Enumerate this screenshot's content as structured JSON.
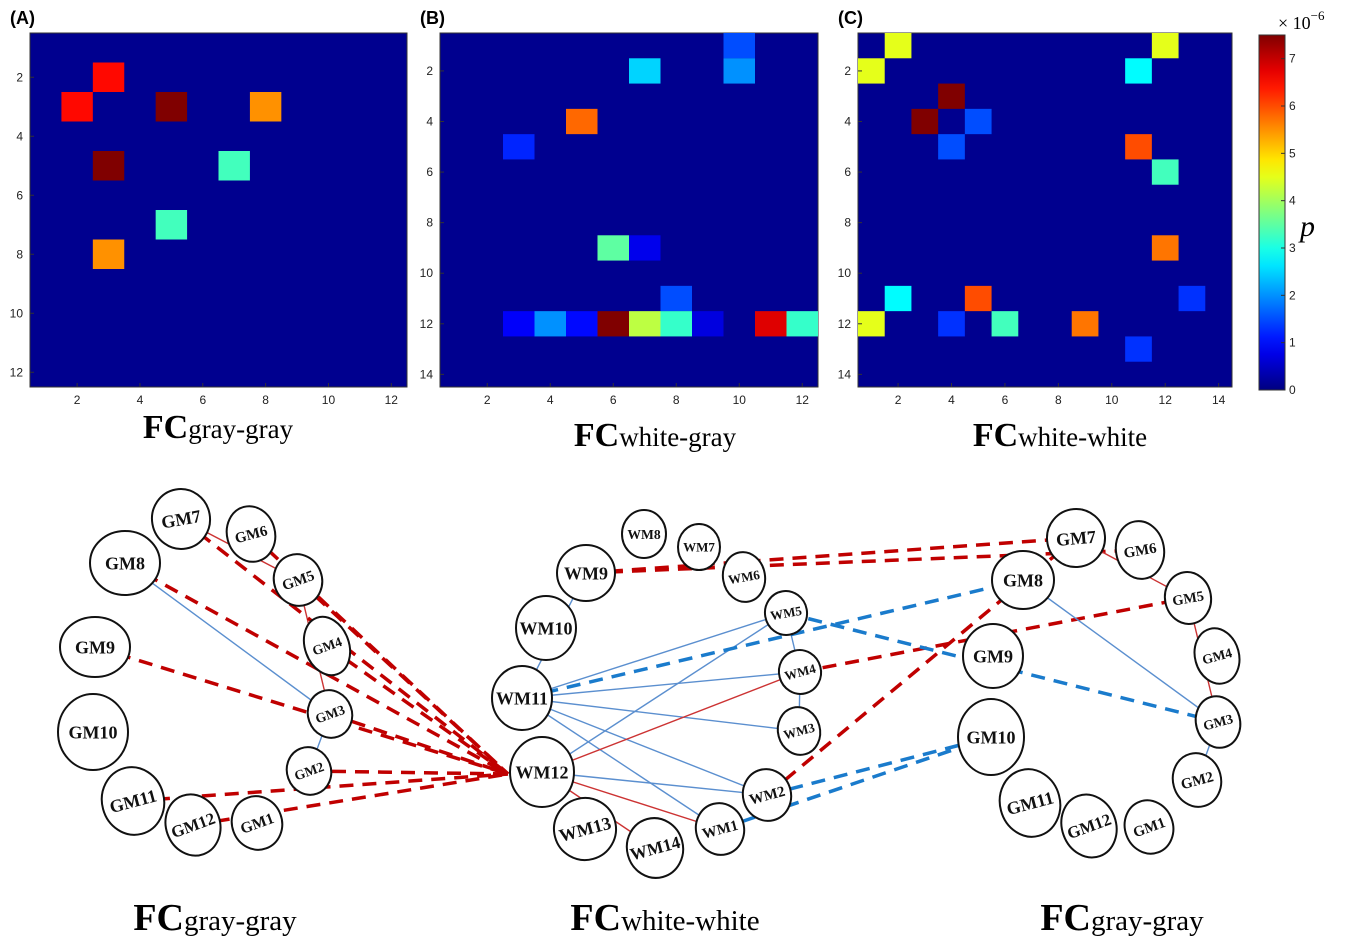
{
  "heatmaps": {
    "panels": [
      {
        "letter": "(A)",
        "caption_fc": "FC",
        "caption_sub": "gray-gray"
      },
      {
        "letter": "(B)",
        "caption_fc": "FC",
        "caption_sub": "white-gray"
      },
      {
        "letter": "(C)",
        "caption_fc": "FC",
        "caption_sub": "white-white"
      }
    ],
    "colorbar": {
      "exponent_label": "× 10",
      "exponent_power": "−6",
      "label": "p",
      "ticks": [
        "0",
        "1",
        "2",
        "3",
        "4",
        "5",
        "6",
        "7"
      ]
    }
  },
  "networks": {
    "captions": [
      {
        "fc": "FC",
        "sub": "gray-gray"
      },
      {
        "fc": "FC",
        "sub": "white-white"
      },
      {
        "fc": "FC",
        "sub": "gray-gray"
      }
    ],
    "left_nodes": [
      "GM1",
      "GM2",
      "GM3",
      "GM4",
      "GM5",
      "GM6",
      "GM7",
      "GM8",
      "GM9",
      "GM10",
      "GM11",
      "GM12"
    ],
    "center_nodes": [
      "WM1",
      "WM2",
      "WM3",
      "WM4",
      "WM5",
      "WM6",
      "WM7",
      "WM8",
      "WM9",
      "WM10",
      "WM11",
      "WM12",
      "WM13",
      "WM14"
    ],
    "right_nodes": [
      "GM1",
      "GM2",
      "GM3",
      "GM4",
      "GM5",
      "GM6",
      "GM7",
      "GM8",
      "GM9",
      "GM10",
      "GM11",
      "GM12"
    ],
    "colors": {
      "red_line": "#cc3333",
      "blue_line": "#5b8fcf",
      "red_dash": "#c00000",
      "blue_dash": "#1a7bcc"
    }
  },
  "chart_data": [
    {
      "type": "heatmap",
      "title": "FCgray-gray",
      "x_ticks": [
        2,
        4,
        6,
        8,
        10,
        12
      ],
      "y_ticks": [
        2,
        4,
        6,
        8,
        10,
        12
      ],
      "xlim": [
        0.5,
        12.5
      ],
      "ylim": [
        0.5,
        12.5
      ],
      "value_unit": "× 10^-6",
      "cells": [
        {
          "x": 3,
          "y": 2,
          "value": 6.5
        },
        {
          "x": 2,
          "y": 3,
          "value": 6.5
        },
        {
          "x": 5,
          "y": 3,
          "value": 7.5
        },
        {
          "x": 8,
          "y": 3,
          "value": 5.5
        },
        {
          "x": 3,
          "y": 5,
          "value": 7.5
        },
        {
          "x": 7,
          "y": 5,
          "value": 3.3
        },
        {
          "x": 5,
          "y": 7,
          "value": 3.3
        },
        {
          "x": 3,
          "y": 8,
          "value": 5.5
        }
      ]
    },
    {
      "type": "heatmap",
      "title": "FCwhite-gray",
      "x_ticks": [
        2,
        4,
        6,
        8,
        10,
        12
      ],
      "y_ticks": [
        2,
        4,
        6,
        8,
        10,
        12,
        14
      ],
      "xlim": [
        0.5,
        12.5
      ],
      "ylim": [
        0.5,
        14.5
      ],
      "value_unit": "× 10^-6",
      "cells": [
        {
          "x": 10,
          "y": 1,
          "value": 1.5
        },
        {
          "x": 7,
          "y": 2,
          "value": 2.5
        },
        {
          "x": 10,
          "y": 2,
          "value": 2.0
        },
        {
          "x": 5,
          "y": 4,
          "value": 5.8
        },
        {
          "x": 3,
          "y": 5,
          "value": 1.2
        },
        {
          "x": 6,
          "y": 9,
          "value": 3.5
        },
        {
          "x": 7,
          "y": 9,
          "value": 0.8
        },
        {
          "x": 8,
          "y": 11,
          "value": 1.5
        },
        {
          "x": 3,
          "y": 12,
          "value": 0.9
        },
        {
          "x": 4,
          "y": 12,
          "value": 2.0
        },
        {
          "x": 5,
          "y": 12,
          "value": 1.0
        },
        {
          "x": 6,
          "y": 12,
          "value": 7.5
        },
        {
          "x": 7,
          "y": 12,
          "value": 4.2
        },
        {
          "x": 8,
          "y": 12,
          "value": 3.2
        },
        {
          "x": 9,
          "y": 12,
          "value": 0.7
        },
        {
          "x": 11,
          "y": 12,
          "value": 6.8
        },
        {
          "x": 12,
          "y": 12,
          "value": 3.2
        }
      ]
    },
    {
      "type": "heatmap",
      "title": "FCwhite-white",
      "x_ticks": [
        2,
        4,
        6,
        8,
        10,
        12,
        14
      ],
      "y_ticks": [
        2,
        4,
        6,
        8,
        10,
        12,
        14
      ],
      "xlim": [
        0.5,
        14.5
      ],
      "ylim": [
        0.5,
        14.5
      ],
      "value_unit": "× 10^-6",
      "cells": [
        {
          "x": 2,
          "y": 1,
          "value": 4.5
        },
        {
          "x": 12,
          "y": 1,
          "value": 4.5
        },
        {
          "x": 1,
          "y": 2,
          "value": 4.5
        },
        {
          "x": 11,
          "y": 2,
          "value": 2.8
        },
        {
          "x": 4,
          "y": 3,
          "value": 7.5
        },
        {
          "x": 3,
          "y": 4,
          "value": 7.5
        },
        {
          "x": 5,
          "y": 4,
          "value": 1.5
        },
        {
          "x": 4,
          "y": 5,
          "value": 1.5
        },
        {
          "x": 11,
          "y": 5,
          "value": 6.0
        },
        {
          "x": 12,
          "y": 6,
          "value": 3.3
        },
        {
          "x": 12,
          "y": 9,
          "value": 5.7
        },
        {
          "x": 2,
          "y": 11,
          "value": 2.8
        },
        {
          "x": 5,
          "y": 11,
          "value": 6.0
        },
        {
          "x": 13,
          "y": 11,
          "value": 1.3
        },
        {
          "x": 1,
          "y": 12,
          "value": 4.5
        },
        {
          "x": 4,
          "y": 12,
          "value": 1.3
        },
        {
          "x": 6,
          "y": 12,
          "value": 3.3
        },
        {
          "x": 9,
          "y": 12,
          "value": 5.7
        },
        {
          "x": 11,
          "y": 13,
          "value": 1.3
        }
      ]
    }
  ]
}
